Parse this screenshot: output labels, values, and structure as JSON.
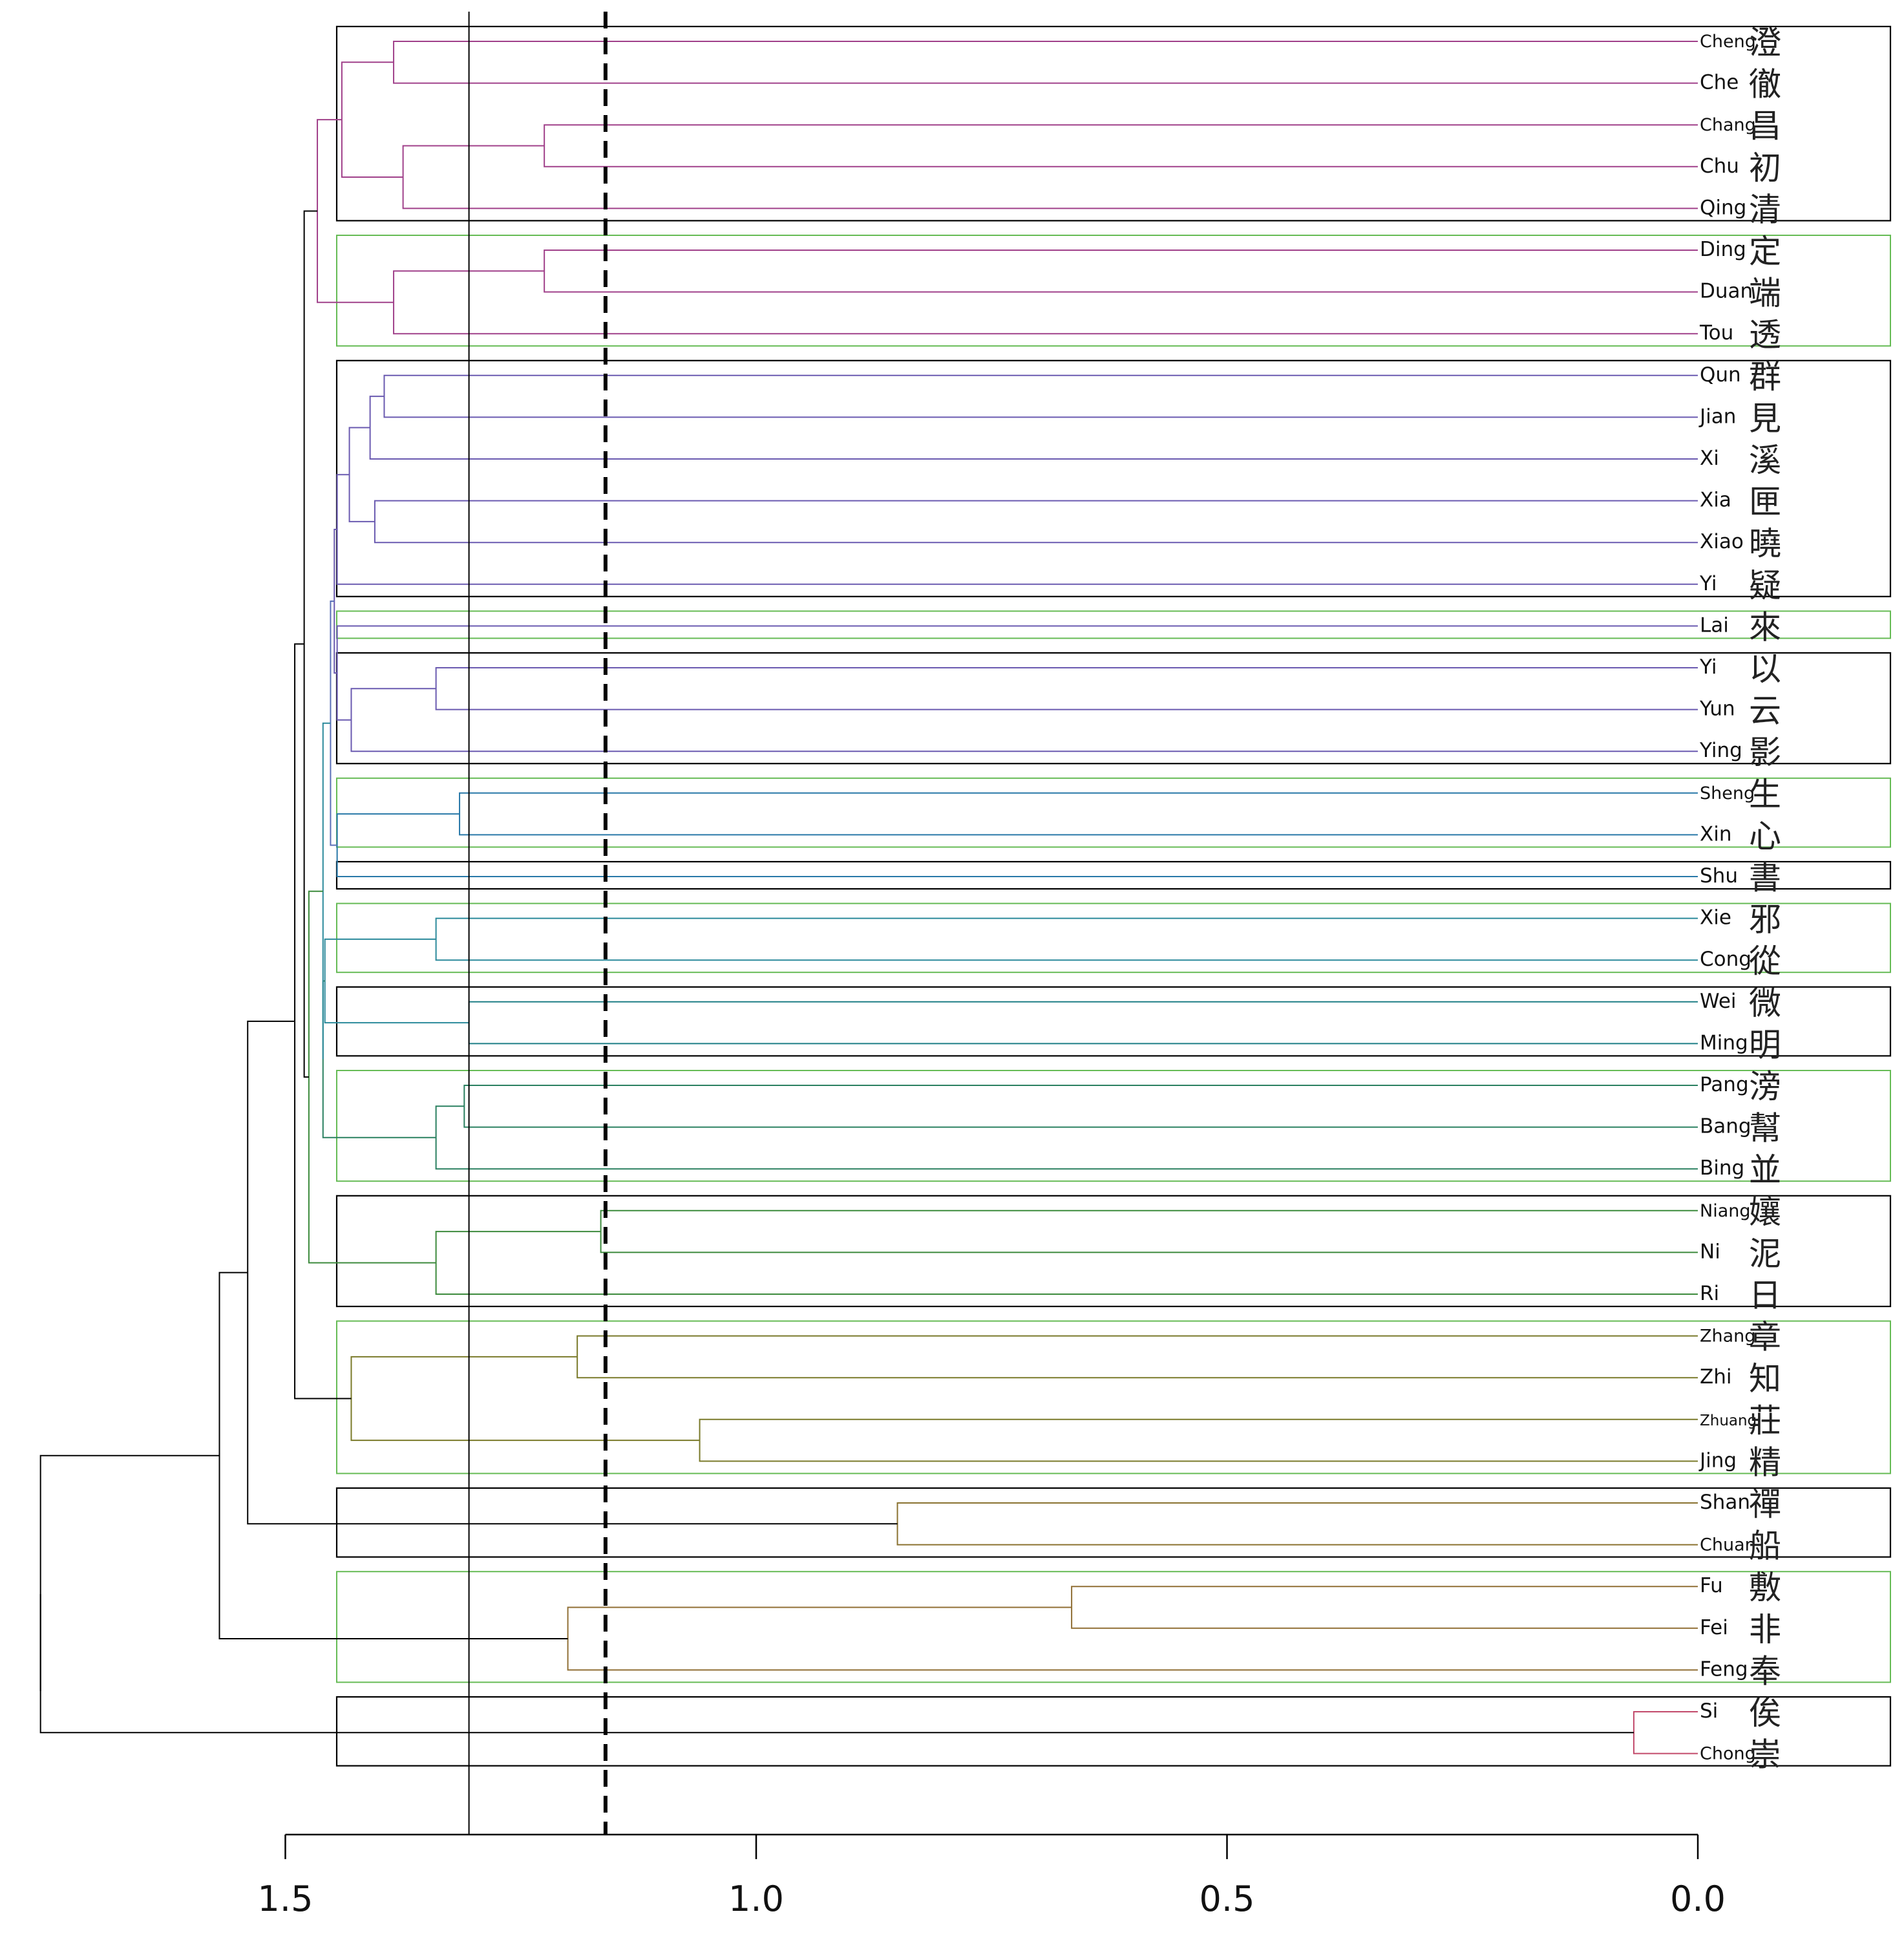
{
  "chart_data": {
    "type": "dendrogram",
    "title": "",
    "xlabel": "",
    "ylabel": "",
    "orientation": "leaves-right",
    "xlim": [
      1.5,
      0.0
    ],
    "x_ticks": [
      1.5,
      1.0,
      0.5,
      0.0
    ],
    "x_tick_labels": [
      "1.5",
      "1.0",
      "0.5",
      "0.0"
    ],
    "reference_lines": [
      {
        "value": 1.305,
        "style": "solid"
      },
      {
        "value": 1.16,
        "style": "dashed"
      }
    ],
    "leaves": [
      {
        "name": "Cheng",
        "char": "澄"
      },
      {
        "name": "Che",
        "char": "徹"
      },
      {
        "name": "Chang",
        "char": "昌"
      },
      {
        "name": "Chu",
        "char": "初"
      },
      {
        "name": "Qing",
        "char": "清"
      },
      {
        "name": "Ding",
        "char": "定"
      },
      {
        "name": "Duan",
        "char": "端"
      },
      {
        "name": "Tou",
        "char": "透"
      },
      {
        "name": "Qun",
        "char": "群"
      },
      {
        "name": "Jian",
        "char": "見"
      },
      {
        "name": "Xi",
        "char": "溪"
      },
      {
        "name": "Xia",
        "char": "匣"
      },
      {
        "name": "Xiao",
        "char": "曉"
      },
      {
        "name": "Yi",
        "char": "疑"
      },
      {
        "name": "Lai",
        "char": "來"
      },
      {
        "name": "Yi",
        "char": "以"
      },
      {
        "name": "Yun",
        "char": "云"
      },
      {
        "name": "Ying",
        "char": "影"
      },
      {
        "name": "Sheng",
        "char": "生"
      },
      {
        "name": "Xin",
        "char": "心"
      },
      {
        "name": "Shu",
        "char": "書"
      },
      {
        "name": "Xie",
        "char": "邪"
      },
      {
        "name": "Cong",
        "char": "從"
      },
      {
        "name": "Wei",
        "char": "微"
      },
      {
        "name": "Ming",
        "char": "明"
      },
      {
        "name": "Pang",
        "char": "滂"
      },
      {
        "name": "Bang",
        "char": "幫"
      },
      {
        "name": "Bing",
        "char": "並"
      },
      {
        "name": "Niang",
        "char": "孃"
      },
      {
        "name": "Ni",
        "char": "泥"
      },
      {
        "name": "Ri",
        "char": "日"
      },
      {
        "name": "Zhang",
        "char": "章"
      },
      {
        "name": "Zhi",
        "char": "知"
      },
      {
        "name": "Zhuang",
        "char": "莊"
      },
      {
        "name": "Jing",
        "char": "精"
      },
      {
        "name": "Shan",
        "char": "禪"
      },
      {
        "name": "Chuan",
        "char": "船"
      },
      {
        "name": "Fu",
        "char": "敷"
      },
      {
        "name": "Fei",
        "char": "非"
      },
      {
        "name": "Feng",
        "char": "奉"
      },
      {
        "name": "Si",
        "char": "俟"
      },
      {
        "name": "Chong",
        "char": "崇"
      }
    ],
    "merges": [
      {
        "a": "L0",
        "b": "L1",
        "height": 1.385,
        "color": "#a0408a"
      },
      {
        "a": "L2",
        "b": "L3",
        "height": 1.225,
        "color": "#a0408a"
      },
      {
        "a": "M1",
        "b": "L4",
        "height": 1.375,
        "color": "#a0408a"
      },
      {
        "a": "M0",
        "b": "M2",
        "height": 1.44,
        "color": "#a0408a"
      },
      {
        "a": "L5",
        "b": "L6",
        "height": 1.225,
        "color": "#a0408a"
      },
      {
        "a": "M4",
        "b": "L7",
        "height": 1.385,
        "color": "#a0408a"
      },
      {
        "a": "M3",
        "b": "M5",
        "height": 1.466,
        "color": "#a0408a"
      },
      {
        "a": "L8",
        "b": "L9",
        "height": 1.395,
        "color": "#6a5ab0"
      },
      {
        "a": "M7",
        "b": "L10",
        "height": 1.41,
        "color": "#6a5ab0"
      },
      {
        "a": "L11",
        "b": "L12",
        "height": 1.405,
        "color": "#6a5ab0"
      },
      {
        "a": "M8",
        "b": "M9",
        "height": 1.432,
        "color": "#6a5ab0"
      },
      {
        "a": "M10",
        "b": "L13",
        "height": 1.445,
        "color": "#6a5ab0"
      },
      {
        "a": "L15",
        "b": "L16",
        "height": 1.34,
        "color": "#6a5ab0"
      },
      {
        "a": "M12",
        "b": "L17",
        "height": 1.43,
        "color": "#6a5ab0"
      },
      {
        "a": "L14",
        "b": "M13",
        "height": 1.445,
        "color": "#6a5ab0"
      },
      {
        "a": "M11",
        "b": "M14",
        "height": 1.448,
        "color": "#6a5ab0"
      },
      {
        "a": "L18",
        "b": "L19",
        "height": 1.315,
        "color": "#2878a8"
      },
      {
        "a": "M16",
        "b": "L20",
        "height": 1.445,
        "color": "#2878a8"
      },
      {
        "a": "M15",
        "b": "M17",
        "height": 1.452,
        "color": "#5a6fb8"
      },
      {
        "a": "L21",
        "b": "L22",
        "height": 1.34,
        "color": "#2b8a9b"
      },
      {
        "a": "L23",
        "b": "L24",
        "height": 1.305,
        "color": "#1f7f86"
      },
      {
        "a": "M19",
        "b": "M20",
        "height": 1.458,
        "color": "#2b8a9b"
      },
      {
        "a": "L25",
        "b": "L26",
        "height": 1.31,
        "color": "#2a8060"
      },
      {
        "a": "M22",
        "b": "L27",
        "height": 1.34,
        "color": "#2a8060"
      },
      {
        "a": "M21",
        "b": "M23",
        "height": 1.46,
        "color": "#2a8060"
      },
      {
        "a": "M18",
        "b": "M24",
        "height": 1.46,
        "color": "#2b8a9b"
      },
      {
        "a": "L28",
        "b": "L29",
        "height": 1.165,
        "color": "#3c8a3c"
      },
      {
        "a": "M26",
        "b": "L30",
        "height": 1.34,
        "color": "#3c8a3c"
      },
      {
        "a": "M25",
        "b": "M27",
        "height": 1.475,
        "color": "#3c8a3c"
      },
      {
        "a": "M6",
        "b": "M28",
        "height": 1.48,
        "color": "#000000"
      },
      {
        "a": "L31",
        "b": "L32",
        "height": 1.19,
        "color": "#7a7a2a"
      },
      {
        "a": "L33",
        "b": "L34",
        "height": 1.06,
        "color": "#7a7a2a"
      },
      {
        "a": "M30",
        "b": "M31",
        "height": 1.43,
        "color": "#7a7a2a"
      },
      {
        "a": "M29",
        "b": "M32",
        "height": 1.49,
        "color": "#000000"
      },
      {
        "a": "L35",
        "b": "L36",
        "height": 0.85,
        "color": "#8a7230"
      },
      {
        "a": "M33",
        "b": "M34",
        "height": 1.54,
        "color": "#000000"
      },
      {
        "a": "L37",
        "b": "L38",
        "height": 0.665,
        "color": "#906f35"
      },
      {
        "a": "M36",
        "b": "L39",
        "height": 1.2,
        "color": "#906f35"
      },
      {
        "a": "M35",
        "b": "M37",
        "height": 1.57,
        "color": "#000000"
      },
      {
        "a": "L40",
        "b": "L41",
        "height": 0.068,
        "color": "#c24a6b"
      },
      {
        "a": "M38",
        "b": "M39",
        "height": 1.76,
        "color": "#000000"
      }
    ],
    "cluster_boxes": [
      {
        "from": 0,
        "to": 4,
        "color": "#000000"
      },
      {
        "from": 5,
        "to": 7,
        "color": "#66bb55"
      },
      {
        "from": 8,
        "to": 13,
        "color": "#000000"
      },
      {
        "from": 14,
        "to": 14,
        "color": "#66bb55"
      },
      {
        "from": 15,
        "to": 17,
        "color": "#000000"
      },
      {
        "from": 18,
        "to": 19,
        "color": "#66bb55"
      },
      {
        "from": 20,
        "to": 20,
        "color": "#000000"
      },
      {
        "from": 21,
        "to": 22,
        "color": "#66bb55"
      },
      {
        "from": 23,
        "to": 24,
        "color": "#000000"
      },
      {
        "from": 25,
        "to": 27,
        "color": "#66bb55"
      },
      {
        "from": 28,
        "to": 30,
        "color": "#000000"
      },
      {
        "from": 31,
        "to": 34,
        "color": "#66bb55"
      },
      {
        "from": 35,
        "to": 36,
        "color": "#000000"
      },
      {
        "from": 37,
        "to": 39,
        "color": "#66bb55"
      },
      {
        "from": 40,
        "to": 41,
        "color": "#000000"
      }
    ]
  }
}
